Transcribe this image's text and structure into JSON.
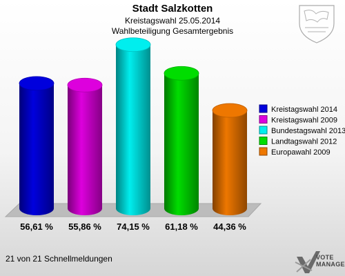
{
  "header": {
    "title": "Stadt Salzkotten",
    "subtitle": "Kreistagswahl 25.05.2014",
    "chart_title": "Wahlbeteiligung Gesamtergebnis"
  },
  "footer": {
    "text": "21 von 21 Schnellmeldungen"
  },
  "logo": {
    "line1": "VOTE",
    "line2": "MANAGER"
  },
  "chart_data": {
    "type": "bar",
    "title": "Wahlbeteiligung Gesamtergebnis",
    "categories": [
      "Kreistagswahl 2014",
      "Kreistagswahl 2009",
      "Bundestagswahl 2013",
      "Landtagswahl 2012",
      "Europawahl 2009"
    ],
    "values": [
      56.61,
      55.86,
      74.15,
      61.18,
      44.36
    ],
    "labels": [
      "56,61 %",
      "55,86 %",
      "74,15 %",
      "61,18 %",
      "44,36 %"
    ],
    "colors": [
      "#0000dd",
      "#dd00dd",
      "#00eeee",
      "#00dd00",
      "#ee7700"
    ],
    "ylim": [
      0,
      100
    ],
    "grid": false,
    "legend": "right"
  }
}
